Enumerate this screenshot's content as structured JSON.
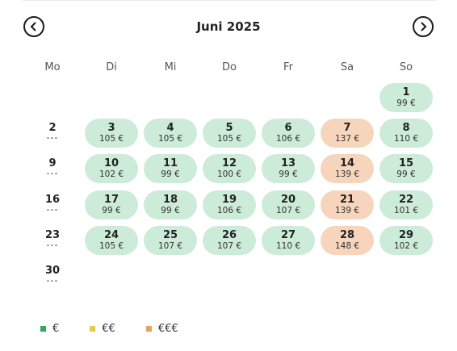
{
  "calendar": {
    "month_title": "Juni 2025",
    "prev_icon": "chevron-left-icon",
    "next_icon": "chevron-right-icon",
    "weekdays": [
      "Mo",
      "Di",
      "Mi",
      "Do",
      "Fr",
      "Sa",
      "So"
    ],
    "weeks": [
      {
        "week": "",
        "dash": ""
      },
      {
        "week": "2",
        "dash": "---"
      },
      {
        "week": "9",
        "dash": "---"
      },
      {
        "week": "16",
        "dash": "---"
      },
      {
        "week": "23",
        "dash": "---"
      },
      {
        "week": "30",
        "dash": "---"
      }
    ],
    "days": [
      {
        "day": "1",
        "price": "99 €",
        "tier": 1
      },
      {
        "day": "3",
        "price": "105 €",
        "tier": 1
      },
      {
        "day": "4",
        "price": "105 €",
        "tier": 1
      },
      {
        "day": "5",
        "price": "105 €",
        "tier": 1
      },
      {
        "day": "6",
        "price": "106 €",
        "tier": 1
      },
      {
        "day": "7",
        "price": "137 €",
        "tier": 3
      },
      {
        "day": "8",
        "price": "110 €",
        "tier": 1
      },
      {
        "day": "10",
        "price": "102 €",
        "tier": 1
      },
      {
        "day": "11",
        "price": "99 €",
        "tier": 1
      },
      {
        "day": "12",
        "price": "100 €",
        "tier": 1
      },
      {
        "day": "13",
        "price": "99 €",
        "tier": 1
      },
      {
        "day": "14",
        "price": "139 €",
        "tier": 3
      },
      {
        "day": "15",
        "price": "99 €",
        "tier": 1
      },
      {
        "day": "17",
        "price": "99 €",
        "tier": 1
      },
      {
        "day": "18",
        "price": "99 €",
        "tier": 1
      },
      {
        "day": "19",
        "price": "106 €",
        "tier": 1
      },
      {
        "day": "20",
        "price": "107 €",
        "tier": 1
      },
      {
        "day": "21",
        "price": "139 €",
        "tier": 3
      },
      {
        "day": "22",
        "price": "101 €",
        "tier": 1
      },
      {
        "day": "24",
        "price": "105 €",
        "tier": 1
      },
      {
        "day": "25",
        "price": "107 €",
        "tier": 1
      },
      {
        "day": "26",
        "price": "107 €",
        "tier": 1
      },
      {
        "day": "27",
        "price": "110 €",
        "tier": 1
      },
      {
        "day": "28",
        "price": "148 €",
        "tier": 3
      },
      {
        "day": "29",
        "price": "102 €",
        "tier": 1
      }
    ]
  },
  "legend": [
    {
      "label": "€",
      "color": "#2fa85f"
    },
    {
      "label": "€€",
      "color": "#e8c94f"
    },
    {
      "label": "€€€",
      "color": "#e9a15f"
    }
  ],
  "colors": {
    "tier1_bg": "#cdebd9",
    "tier3_bg": "#f6d5bc"
  }
}
